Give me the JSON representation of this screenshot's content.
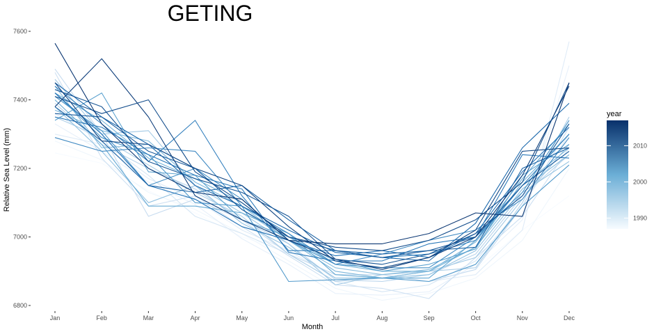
{
  "chart_data": {
    "type": "line",
    "title": "GETING",
    "xlabel": "Month",
    "ylabel": "Relative Sea Level (mm)",
    "categories": [
      "Jan",
      "Feb",
      "Mar",
      "Apr",
      "May",
      "Jun",
      "Jul",
      "Aug",
      "Sep",
      "Oct",
      "Nov",
      "Dec"
    ],
    "ylim": [
      6800,
      7600
    ],
    "yticks": [
      6800,
      7000,
      7200,
      7400,
      7600
    ],
    "grid": false,
    "legend": {
      "title": "year",
      "position": "right",
      "type": "colorbar",
      "range": [
        1987,
        2017
      ],
      "ticks": [
        1990,
        2000,
        2010
      ],
      "low_color": "#f7fbff",
      "high_color": "#08306b"
    },
    "series": [
      {
        "year": 1987,
        "values": [
          7245,
          7215,
          7135,
          7070,
          7000,
          6955,
          6900,
          6870,
          6880,
          6905,
          7020,
          7120
        ]
      },
      {
        "year": 1988,
        "values": [
          7280,
          7225,
          7130,
          7080,
          7010,
          6930,
          6850,
          6815,
          6835,
          6880,
          6990,
          7200
        ]
      },
      {
        "year": 1989,
        "values": [
          7330,
          7250,
          7160,
          7095,
          6995,
          6920,
          6835,
          6830,
          6840,
          6920,
          7050,
          7500
        ]
      },
      {
        "year": 1990,
        "values": [
          7300,
          7270,
          7170,
          7110,
          7020,
          6960,
          6880,
          6880,
          6870,
          6890,
          7020,
          7570
        ]
      },
      {
        "year": 1991,
        "values": [
          7360,
          7280,
          7180,
          7060,
          7010,
          6950,
          6870,
          6840,
          6860,
          6930,
          7090,
          7300
        ]
      },
      {
        "year": 1992,
        "values": [
          7480,
          7230,
          7090,
          7120,
          7030,
          6945,
          6860,
          6850,
          6820,
          6940,
          7060,
          7260
        ]
      },
      {
        "year": 1993,
        "values": [
          7490,
          7300,
          7060,
          7110,
          7050,
          6950,
          6890,
          6890,
          6870,
          6905,
          7090,
          7320
        ]
      },
      {
        "year": 1994,
        "values": [
          7390,
          7270,
          7200,
          7140,
          7050,
          6980,
          6875,
          6870,
          6890,
          6950,
          7120,
          7240
        ]
      },
      {
        "year": 1995,
        "values": [
          7350,
          7290,
          7210,
          7130,
          7060,
          6950,
          6870,
          6880,
          6900,
          6910,
          7100,
          7350
        ]
      },
      {
        "year": 1996,
        "values": [
          7460,
          7300,
          7310,
          7150,
          7070,
          6980,
          6860,
          6890,
          6900,
          6940,
          7110,
          7270
        ]
      },
      {
        "year": 1997,
        "values": [
          7380,
          7250,
          7100,
          7150,
          7040,
          6970,
          6880,
          6880,
          6890,
          6960,
          7130,
          7220
        ]
      },
      {
        "year": 1998,
        "values": [
          7440,
          7260,
          7270,
          7200,
          7080,
          6990,
          6910,
          6890,
          6905,
          6970,
          7140,
          7240
        ]
      },
      {
        "year": 1999,
        "values": [
          7370,
          7310,
          7280,
          7160,
          7090,
          6990,
          6900,
          6880,
          6900,
          6985,
          7150,
          7260
        ]
      },
      {
        "year": 2000,
        "values": [
          7420,
          7340,
          7230,
          7170,
          7100,
          7000,
          6920,
          6900,
          6900,
          6970,
          7160,
          7300
        ]
      },
      {
        "year": 2001,
        "values": [
          7400,
          7270,
          7090,
          7090,
          7070,
          7010,
          6890,
          6880,
          6880,
          6990,
          7170,
          7330
        ]
      },
      {
        "year": 2002,
        "values": [
          7340,
          7420,
          7190,
          7180,
          7050,
          7000,
          6930,
          6900,
          6920,
          6965,
          7180,
          7270
        ]
      },
      {
        "year": 2003,
        "values": [
          7420,
          7290,
          7240,
          7100,
          7090,
          6870,
          6875,
          6880,
          6870,
          6920,
          7090,
          7210
        ]
      },
      {
        "year": 2004,
        "values": [
          7410,
          7310,
          7150,
          7200,
          7110,
          6990,
          6920,
          6910,
          6910,
          7000,
          7130,
          7340
        ]
      },
      {
        "year": 2005,
        "values": [
          7290,
          7250,
          7260,
          7250,
          7090,
          7010,
          6920,
          6950,
          6990,
          7020,
          7110,
          7290
        ]
      },
      {
        "year": 2006,
        "values": [
          7440,
          7330,
          7220,
          7340,
          7120,
          6960,
          6960,
          6940,
          6950,
          6990,
          7150,
          7300
        ]
      },
      {
        "year": 2007,
        "values": [
          7350,
          7320,
          7240,
          7180,
          7140,
          6955,
          6930,
          6930,
          6980,
          7000,
          7240,
          7230
        ]
      },
      {
        "year": 2008,
        "values": [
          7420,
          7300,
          7150,
          7110,
          7030,
          6990,
          6945,
          6960,
          6940,
          7010,
          7190,
          7320
        ]
      },
      {
        "year": 2009,
        "values": [
          7450,
          7350,
          7270,
          7150,
          7090,
          7020,
          6955,
          6940,
          6930,
          7040,
          7260,
          7390
        ]
      },
      {
        "year": 2010,
        "values": [
          7380,
          7280,
          7150,
          7130,
          7150,
          7050,
          6960,
          6950,
          6960,
          6970,
          7200,
          7260
        ]
      },
      {
        "year": 2011,
        "values": [
          7360,
          7350,
          7250,
          7200,
          7080,
          7000,
          6960,
          6940,
          6960,
          7000,
          7150,
          7250
        ]
      },
      {
        "year": 2012,
        "values": [
          7430,
          7380,
          7220,
          7170,
          7130,
          7060,
          6935,
          6920,
          6950,
          7010,
          7120,
          7330
        ]
      },
      {
        "year": 2013,
        "values": [
          7410,
          7360,
          7400,
          7190,
          7100,
          7000,
          6970,
          6960,
          6990,
          7050,
          7160,
          7450
        ]
      },
      {
        "year": 2014,
        "values": [
          7450,
          7280,
          7270,
          7200,
          7150,
          7030,
          6930,
          6910,
          6940,
          7020,
          7250,
          7260
        ]
      },
      {
        "year": 2015,
        "values": [
          7380,
          7520,
          7350,
          7120,
          7050,
          6990,
          6935,
          6905,
          6940,
          7000,
          7180,
          7440
        ]
      },
      {
        "year": 2016,
        "values": [
          7565,
          7330,
          7200,
          7130,
          7110,
          6990,
          6980,
          6980,
          7010,
          7070,
          7060,
          7450
        ]
      }
    ]
  }
}
